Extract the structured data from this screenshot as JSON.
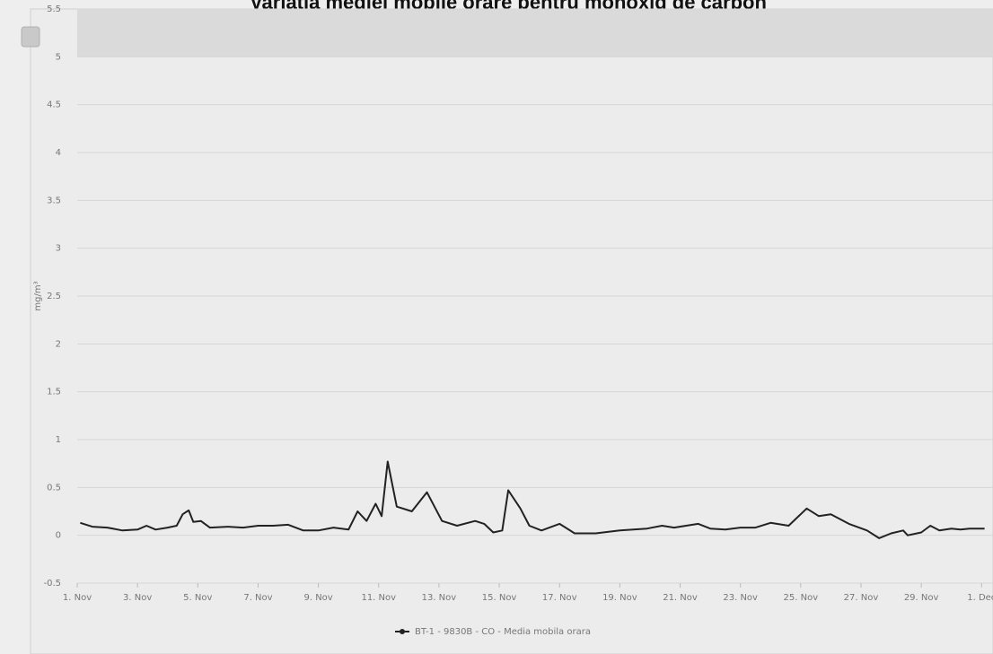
{
  "chart_data": {
    "type": "line",
    "title": "Variaţia mediei mobile orare pentru monoxid de carbon",
    "y_axis_label": "mg/m³",
    "xlim": [
      1,
      31.2
    ],
    "ylim": [
      -0.5,
      5.5
    ],
    "yticks": [
      -0.5,
      0,
      0.5,
      1,
      1.5,
      2,
      2.5,
      3,
      3.5,
      4,
      4.5,
      5,
      5.5
    ],
    "xticks": [
      {
        "value": 1,
        "label": "1. Nov"
      },
      {
        "value": 3,
        "label": "3. Nov"
      },
      {
        "value": 5,
        "label": "5. Nov"
      },
      {
        "value": 7,
        "label": "7. Nov"
      },
      {
        "value": 9,
        "label": "9. Nov"
      },
      {
        "value": 11,
        "label": "11. Nov"
      },
      {
        "value": 13,
        "label": "13. Nov"
      },
      {
        "value": 15,
        "label": "15. Nov"
      },
      {
        "value": 17,
        "label": "17. Nov"
      },
      {
        "value": 19,
        "label": "19. Nov"
      },
      {
        "value": 21,
        "label": "21. Nov"
      },
      {
        "value": 23,
        "label": "23. Nov"
      },
      {
        "value": 25,
        "label": "25. Nov"
      },
      {
        "value": 27,
        "label": "27. Nov"
      },
      {
        "value": 29,
        "label": "29. Nov"
      },
      {
        "value": 31,
        "label": "1. Dec"
      }
    ],
    "grid": true,
    "plot_band": {
      "from": 5,
      "to": 5.5,
      "color": "#dadada"
    },
    "legend": "bottom",
    "series": [
      {
        "name": "BT-1 - 9830B - CO - Media mobila orara",
        "color": "#222222",
        "x": [
          1.1,
          1.5,
          2,
          2.5,
          3,
          3.3,
          3.6,
          4,
          4.3,
          4.5,
          4.7,
          4.85,
          5.1,
          5.4,
          6,
          6.5,
          7,
          7.5,
          8,
          8.5,
          9,
          9.5,
          10,
          10.3,
          10.6,
          10.9,
          11.1,
          11.3,
          11.6,
          12.1,
          12.6,
          13.1,
          13.6,
          14.2,
          14.5,
          14.8,
          15.1,
          15.3,
          15.7,
          16,
          16.4,
          17,
          17.5,
          18.2,
          19,
          19.9,
          20.4,
          20.8,
          21.2,
          21.6,
          22,
          22.5,
          23,
          23.5,
          24,
          24.6,
          25.2,
          25.6,
          26,
          26.6,
          27.2,
          27.6,
          28,
          28.4,
          28.55,
          29,
          29.3,
          29.6,
          30,
          30.3,
          30.6,
          31.1
        ],
        "values": [
          0.13,
          0.09,
          0.08,
          0.05,
          0.06,
          0.1,
          0.06,
          0.08,
          0.1,
          0.22,
          0.26,
          0.14,
          0.15,
          0.08,
          0.09,
          0.08,
          0.1,
          0.1,
          0.11,
          0.05,
          0.05,
          0.08,
          0.06,
          0.25,
          0.15,
          0.33,
          0.2,
          0.77,
          0.3,
          0.25,
          0.45,
          0.15,
          0.1,
          0.15,
          0.12,
          0.03,
          0.05,
          0.47,
          0.28,
          0.1,
          0.05,
          0.12,
          0.02,
          0.02,
          0.05,
          0.07,
          0.1,
          0.08,
          0.1,
          0.12,
          0.07,
          0.06,
          0.08,
          0.08,
          0.13,
          0.1,
          0.28,
          0.2,
          0.22,
          0.12,
          0.05,
          -0.03,
          0.02,
          0.05,
          0.0,
          0.03,
          0.1,
          0.05,
          0.07,
          0.06,
          0.07,
          0.07
        ]
      }
    ]
  }
}
